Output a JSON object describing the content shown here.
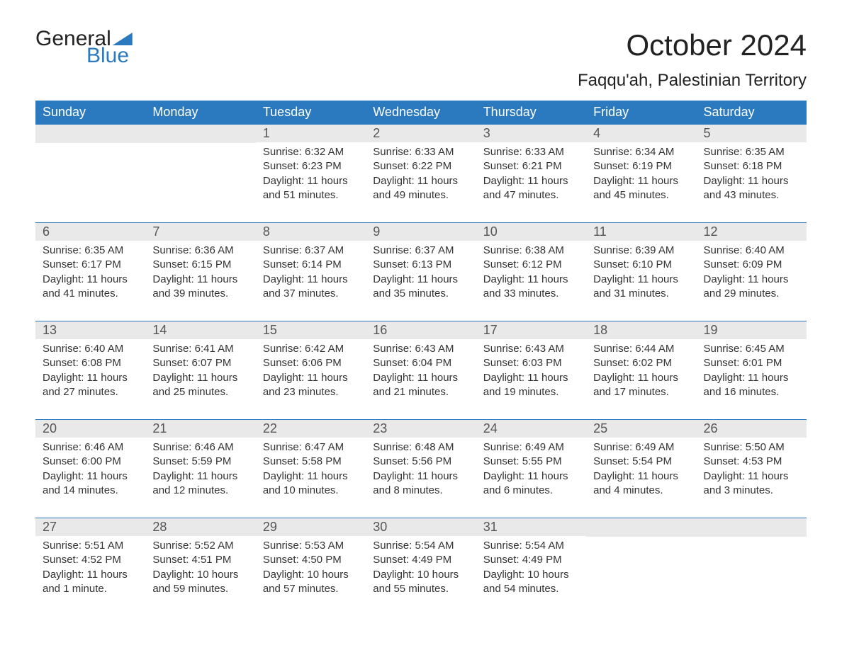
{
  "brand": {
    "line1": "General",
    "line2": "Blue"
  },
  "title": "October 2024",
  "subtitle": "Faqqu'ah, Palestinian Territory",
  "colors": {
    "header_bg": "#2b7ac0",
    "header_text": "#ffffff",
    "daynum_bg": "#e9e9e9",
    "daynum_text": "#555555",
    "body_text": "#333333",
    "rule": "#2b7ac0",
    "page_bg": "#ffffff"
  },
  "weekdays": [
    "Sunday",
    "Monday",
    "Tuesday",
    "Wednesday",
    "Thursday",
    "Friday",
    "Saturday"
  ],
  "leading_blanks": 2,
  "days": [
    {
      "n": "1",
      "sunrise": "Sunrise: 6:32 AM",
      "sunset": "Sunset: 6:23 PM",
      "day1": "Daylight: 11 hours",
      "day2": "and 51 minutes."
    },
    {
      "n": "2",
      "sunrise": "Sunrise: 6:33 AM",
      "sunset": "Sunset: 6:22 PM",
      "day1": "Daylight: 11 hours",
      "day2": "and 49 minutes."
    },
    {
      "n": "3",
      "sunrise": "Sunrise: 6:33 AM",
      "sunset": "Sunset: 6:21 PM",
      "day1": "Daylight: 11 hours",
      "day2": "and 47 minutes."
    },
    {
      "n": "4",
      "sunrise": "Sunrise: 6:34 AM",
      "sunset": "Sunset: 6:19 PM",
      "day1": "Daylight: 11 hours",
      "day2": "and 45 minutes."
    },
    {
      "n": "5",
      "sunrise": "Sunrise: 6:35 AM",
      "sunset": "Sunset: 6:18 PM",
      "day1": "Daylight: 11 hours",
      "day2": "and 43 minutes."
    },
    {
      "n": "6",
      "sunrise": "Sunrise: 6:35 AM",
      "sunset": "Sunset: 6:17 PM",
      "day1": "Daylight: 11 hours",
      "day2": "and 41 minutes."
    },
    {
      "n": "7",
      "sunrise": "Sunrise: 6:36 AM",
      "sunset": "Sunset: 6:15 PM",
      "day1": "Daylight: 11 hours",
      "day2": "and 39 minutes."
    },
    {
      "n": "8",
      "sunrise": "Sunrise: 6:37 AM",
      "sunset": "Sunset: 6:14 PM",
      "day1": "Daylight: 11 hours",
      "day2": "and 37 minutes."
    },
    {
      "n": "9",
      "sunrise": "Sunrise: 6:37 AM",
      "sunset": "Sunset: 6:13 PM",
      "day1": "Daylight: 11 hours",
      "day2": "and 35 minutes."
    },
    {
      "n": "10",
      "sunrise": "Sunrise: 6:38 AM",
      "sunset": "Sunset: 6:12 PM",
      "day1": "Daylight: 11 hours",
      "day2": "and 33 minutes."
    },
    {
      "n": "11",
      "sunrise": "Sunrise: 6:39 AM",
      "sunset": "Sunset: 6:10 PM",
      "day1": "Daylight: 11 hours",
      "day2": "and 31 minutes."
    },
    {
      "n": "12",
      "sunrise": "Sunrise: 6:40 AM",
      "sunset": "Sunset: 6:09 PM",
      "day1": "Daylight: 11 hours",
      "day2": "and 29 minutes."
    },
    {
      "n": "13",
      "sunrise": "Sunrise: 6:40 AM",
      "sunset": "Sunset: 6:08 PM",
      "day1": "Daylight: 11 hours",
      "day2": "and 27 minutes."
    },
    {
      "n": "14",
      "sunrise": "Sunrise: 6:41 AM",
      "sunset": "Sunset: 6:07 PM",
      "day1": "Daylight: 11 hours",
      "day2": "and 25 minutes."
    },
    {
      "n": "15",
      "sunrise": "Sunrise: 6:42 AM",
      "sunset": "Sunset: 6:06 PM",
      "day1": "Daylight: 11 hours",
      "day2": "and 23 minutes."
    },
    {
      "n": "16",
      "sunrise": "Sunrise: 6:43 AM",
      "sunset": "Sunset: 6:04 PM",
      "day1": "Daylight: 11 hours",
      "day2": "and 21 minutes."
    },
    {
      "n": "17",
      "sunrise": "Sunrise: 6:43 AM",
      "sunset": "Sunset: 6:03 PM",
      "day1": "Daylight: 11 hours",
      "day2": "and 19 minutes."
    },
    {
      "n": "18",
      "sunrise": "Sunrise: 6:44 AM",
      "sunset": "Sunset: 6:02 PM",
      "day1": "Daylight: 11 hours",
      "day2": "and 17 minutes."
    },
    {
      "n": "19",
      "sunrise": "Sunrise: 6:45 AM",
      "sunset": "Sunset: 6:01 PM",
      "day1": "Daylight: 11 hours",
      "day2": "and 16 minutes."
    },
    {
      "n": "20",
      "sunrise": "Sunrise: 6:46 AM",
      "sunset": "Sunset: 6:00 PM",
      "day1": "Daylight: 11 hours",
      "day2": "and 14 minutes."
    },
    {
      "n": "21",
      "sunrise": "Sunrise: 6:46 AM",
      "sunset": "Sunset: 5:59 PM",
      "day1": "Daylight: 11 hours",
      "day2": "and 12 minutes."
    },
    {
      "n": "22",
      "sunrise": "Sunrise: 6:47 AM",
      "sunset": "Sunset: 5:58 PM",
      "day1": "Daylight: 11 hours",
      "day2": "and 10 minutes."
    },
    {
      "n": "23",
      "sunrise": "Sunrise: 6:48 AM",
      "sunset": "Sunset: 5:56 PM",
      "day1": "Daylight: 11 hours",
      "day2": "and 8 minutes."
    },
    {
      "n": "24",
      "sunrise": "Sunrise: 6:49 AM",
      "sunset": "Sunset: 5:55 PM",
      "day1": "Daylight: 11 hours",
      "day2": "and 6 minutes."
    },
    {
      "n": "25",
      "sunrise": "Sunrise: 6:49 AM",
      "sunset": "Sunset: 5:54 PM",
      "day1": "Daylight: 11 hours",
      "day2": "and 4 minutes."
    },
    {
      "n": "26",
      "sunrise": "Sunrise: 5:50 AM",
      "sunset": "Sunset: 4:53 PM",
      "day1": "Daylight: 11 hours",
      "day2": "and 3 minutes."
    },
    {
      "n": "27",
      "sunrise": "Sunrise: 5:51 AM",
      "sunset": "Sunset: 4:52 PM",
      "day1": "Daylight: 11 hours",
      "day2": "and 1 minute."
    },
    {
      "n": "28",
      "sunrise": "Sunrise: 5:52 AM",
      "sunset": "Sunset: 4:51 PM",
      "day1": "Daylight: 10 hours",
      "day2": "and 59 minutes."
    },
    {
      "n": "29",
      "sunrise": "Sunrise: 5:53 AM",
      "sunset": "Sunset: 4:50 PM",
      "day1": "Daylight: 10 hours",
      "day2": "and 57 minutes."
    },
    {
      "n": "30",
      "sunrise": "Sunrise: 5:54 AM",
      "sunset": "Sunset: 4:49 PM",
      "day1": "Daylight: 10 hours",
      "day2": "and 55 minutes."
    },
    {
      "n": "31",
      "sunrise": "Sunrise: 5:54 AM",
      "sunset": "Sunset: 4:49 PM",
      "day1": "Daylight: 10 hours",
      "day2": "and 54 minutes."
    }
  ]
}
